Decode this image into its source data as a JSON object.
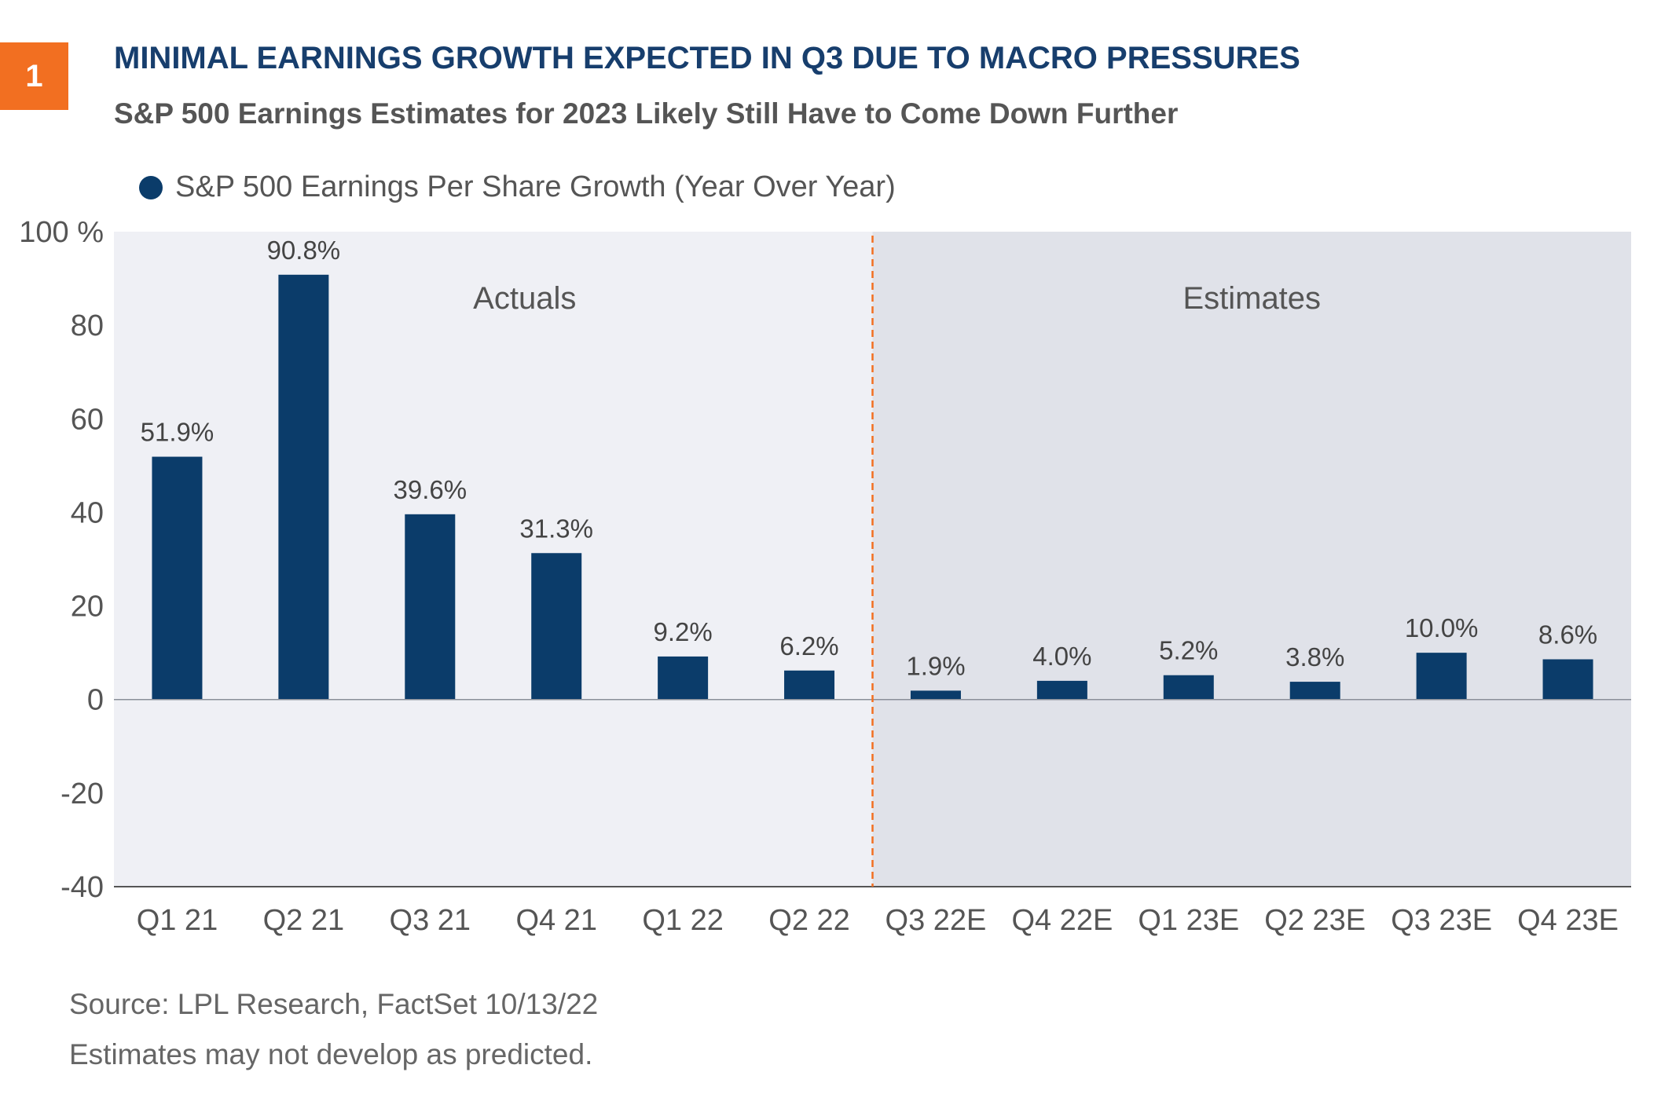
{
  "badge": "1",
  "title": "MINIMAL EARNINGS GROWTH EXPECTED IN Q3 DUE TO MACRO PRESSURES",
  "subtitle": "S&P 500 Earnings Estimates for 2023 Likely Still Have to Come Down Further",
  "legend_label": "S&P 500 Earnings Per Share Growth (Year Over Year)",
  "colors": {
    "bar": "#0b3c6a",
    "actuals_bg": "#eff0f5",
    "estimates_bg": "#e0e2e9",
    "divider": "#f26f21",
    "badge": "#f26f21",
    "title": "#173e6d"
  },
  "chart_data": {
    "type": "bar",
    "categories": [
      "Q1 21",
      "Q2 21",
      "Q3 21",
      "Q4 21",
      "Q1 22",
      "Q2 22",
      "Q3 22E",
      "Q4 22E",
      "Q1 23E",
      "Q2 23E",
      "Q3 23E",
      "Q4 23E"
    ],
    "values": [
      51.9,
      90.8,
      39.6,
      31.3,
      9.2,
      6.2,
      1.9,
      4.0,
      5.2,
      3.8,
      10.0,
      8.6
    ],
    "data_labels": [
      "51.9%",
      "90.8%",
      "39.6%",
      "31.3%",
      "9.2%",
      "6.2%",
      "1.9%",
      "4.0%",
      "5.2%",
      "3.8%",
      "10.0%",
      "8.6%"
    ],
    "y_ticks": [
      "100 %",
      "80",
      "60",
      "40",
      "20",
      "0",
      "-20",
      "-40"
    ],
    "ylim": [
      -40,
      100
    ],
    "regions": [
      {
        "label": "Actuals",
        "from_category": "Q1 21",
        "to_category": "Q2 22"
      },
      {
        "label": "Estimates",
        "from_category": "Q3 22E",
        "to_category": "Q4 23E"
      }
    ],
    "grid": false,
    "legend_position": "top-left"
  },
  "footer": {
    "source": "Source: LPL Research, FactSet  10/13/22",
    "note": "Estimates may not develop as predicted."
  }
}
